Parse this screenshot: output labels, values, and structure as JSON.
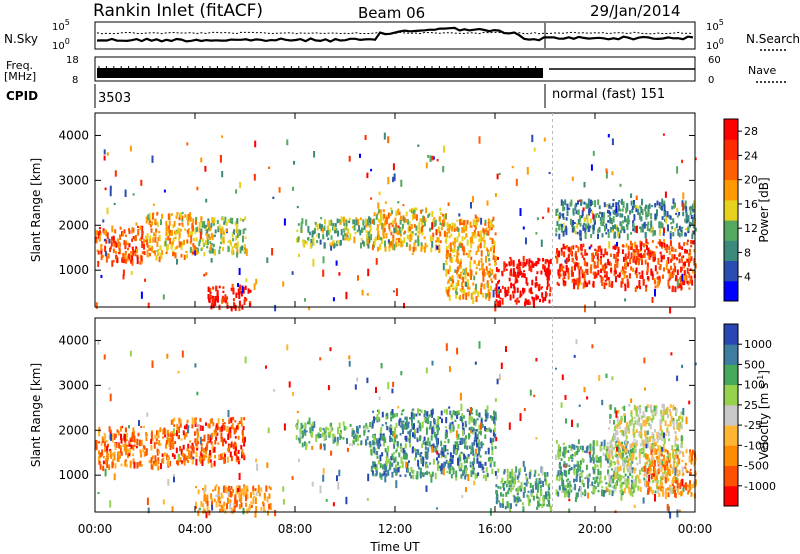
{
  "header": {
    "title": "Rankin Inlet (fitACF)",
    "beam": "Beam 06",
    "date": "29/Jan/2014"
  },
  "top_panels": {
    "nsky_label": "N.Sky",
    "nsearch_label": "N.Search",
    "nsky_ticks": [
      "10^5",
      "10^0"
    ],
    "nsky_ticks_right": [
      "10^5",
      "10^0"
    ],
    "freq_label": "Freq.",
    "freq_unit": "[MHz]",
    "freq_ticks": [
      "18",
      "8"
    ],
    "nave_label": "Nave",
    "nave_ticks": [
      "60",
      "0"
    ],
    "cpid_label": "CPID",
    "cpid_first": "3503",
    "cpid_second": "normal (fast) 151"
  },
  "colors": {
    "power": [
      "#0000ff",
      "#2a4db0",
      "#3c8a7d",
      "#55a860",
      "#e6d21e",
      "#ff9a00",
      "#ff6000",
      "#ff2a00",
      "#ff0000"
    ],
    "velocity": [
      "#ff0000",
      "#ff5000",
      "#ff8c00",
      "#ffb432",
      "#c8c8c8",
      "#96d24b",
      "#46a85a",
      "#3c7da0",
      "#2846b4"
    ]
  },
  "chart_data": [
    {
      "type": "heatmap",
      "title": "",
      "ylabel": "Slant Range [km]",
      "xlabel": "",
      "x_ticks": [
        "00:00",
        "04:00",
        "08:00",
        "12:00",
        "16:00",
        "20:00",
        "00:00"
      ],
      "y_ticks": [
        "1000",
        "2000",
        "3000",
        "4000"
      ],
      "xlim_hours": [
        0,
        24
      ],
      "ylim_km": [
        180,
        4500
      ],
      "colorbar": {
        "label": "Power [dB]",
        "ticks": [
          "4",
          "8",
          "12",
          "16",
          "20",
          "24",
          "28"
        ],
        "range": [
          0,
          30
        ]
      },
      "echo_bands": [
        {
          "t0": 0.0,
          "t1": 2.0,
          "r0": 1200,
          "r1": 2000,
          "level": 0.75
        },
        {
          "t0": 2.0,
          "t1": 4.0,
          "r0": 1300,
          "r1": 2300,
          "level": 0.6
        },
        {
          "t0": 4.0,
          "t1": 6.0,
          "r0": 1400,
          "r1": 2200,
          "level": 0.45
        },
        {
          "t0": 4.5,
          "t1": 6.2,
          "r0": 200,
          "r1": 700,
          "level": 0.92
        },
        {
          "t0": 8.0,
          "t1": 11.0,
          "r0": 1600,
          "r1": 2200,
          "level": 0.4
        },
        {
          "t0": 11.0,
          "t1": 14.0,
          "r0": 1500,
          "r1": 2400,
          "level": 0.55
        },
        {
          "t0": 14.0,
          "t1": 16.0,
          "r0": 400,
          "r1": 2200,
          "level": 0.6
        },
        {
          "t0": 16.0,
          "t1": 18.2,
          "r0": 300,
          "r1": 1300,
          "level": 0.97
        },
        {
          "t0": 18.4,
          "t1": 21.0,
          "r0": 700,
          "r1": 1600,
          "level": 0.85
        },
        {
          "t0": 21.0,
          "t1": 24.0,
          "r0": 600,
          "r1": 1700,
          "level": 0.8
        },
        {
          "t0": 18.4,
          "t1": 24.0,
          "r0": 1800,
          "r1": 2600,
          "level": 0.3
        }
      ]
    },
    {
      "type": "heatmap",
      "title": "",
      "ylabel": "Slant Range [km]",
      "xlabel": "Time UT",
      "x_ticks": [
        "00:00",
        "04:00",
        "08:00",
        "12:00",
        "16:00",
        "20:00",
        "00:00"
      ],
      "y_ticks": [
        "1000",
        "2000",
        "3000",
        "4000"
      ],
      "xlim_hours": [
        0,
        24
      ],
      "ylim_km": [
        180,
        4500
      ],
      "colorbar": {
        "label": "Velocity [m s^-1]",
        "ticks": [
          "1000",
          "500",
          "100",
          "25",
          "-25",
          "-100",
          "-500",
          "-1000"
        ],
        "range": [
          -1000,
          1000
        ]
      },
      "echo_bands": [
        {
          "t0": 0.0,
          "t1": 3.0,
          "r0": 1200,
          "r1": 2100,
          "level": 0.25
        },
        {
          "t0": 3.0,
          "t1": 6.0,
          "r0": 1300,
          "r1": 2300,
          "level": 0.2
        },
        {
          "t0": 4.0,
          "t1": 7.0,
          "r0": 200,
          "r1": 800,
          "level": 0.3
        },
        {
          "t0": 8.0,
          "t1": 11.0,
          "r0": 1700,
          "r1": 2200,
          "level": 0.7
        },
        {
          "t0": 11.0,
          "t1": 16.0,
          "r0": 1000,
          "r1": 2500,
          "level": 0.78
        },
        {
          "t0": 16.0,
          "t1": 18.2,
          "r0": 300,
          "r1": 1200,
          "level": 0.72
        },
        {
          "t0": 18.4,
          "t1": 21.5,
          "r0": 600,
          "r1": 1800,
          "level": 0.7
        },
        {
          "t0": 20.5,
          "t1": 23.5,
          "r0": 700,
          "r1": 2600,
          "level": 0.52
        },
        {
          "t0": 22.0,
          "t1": 24.0,
          "r0": 600,
          "r1": 1600,
          "level": 0.28
        }
      ]
    }
  ]
}
